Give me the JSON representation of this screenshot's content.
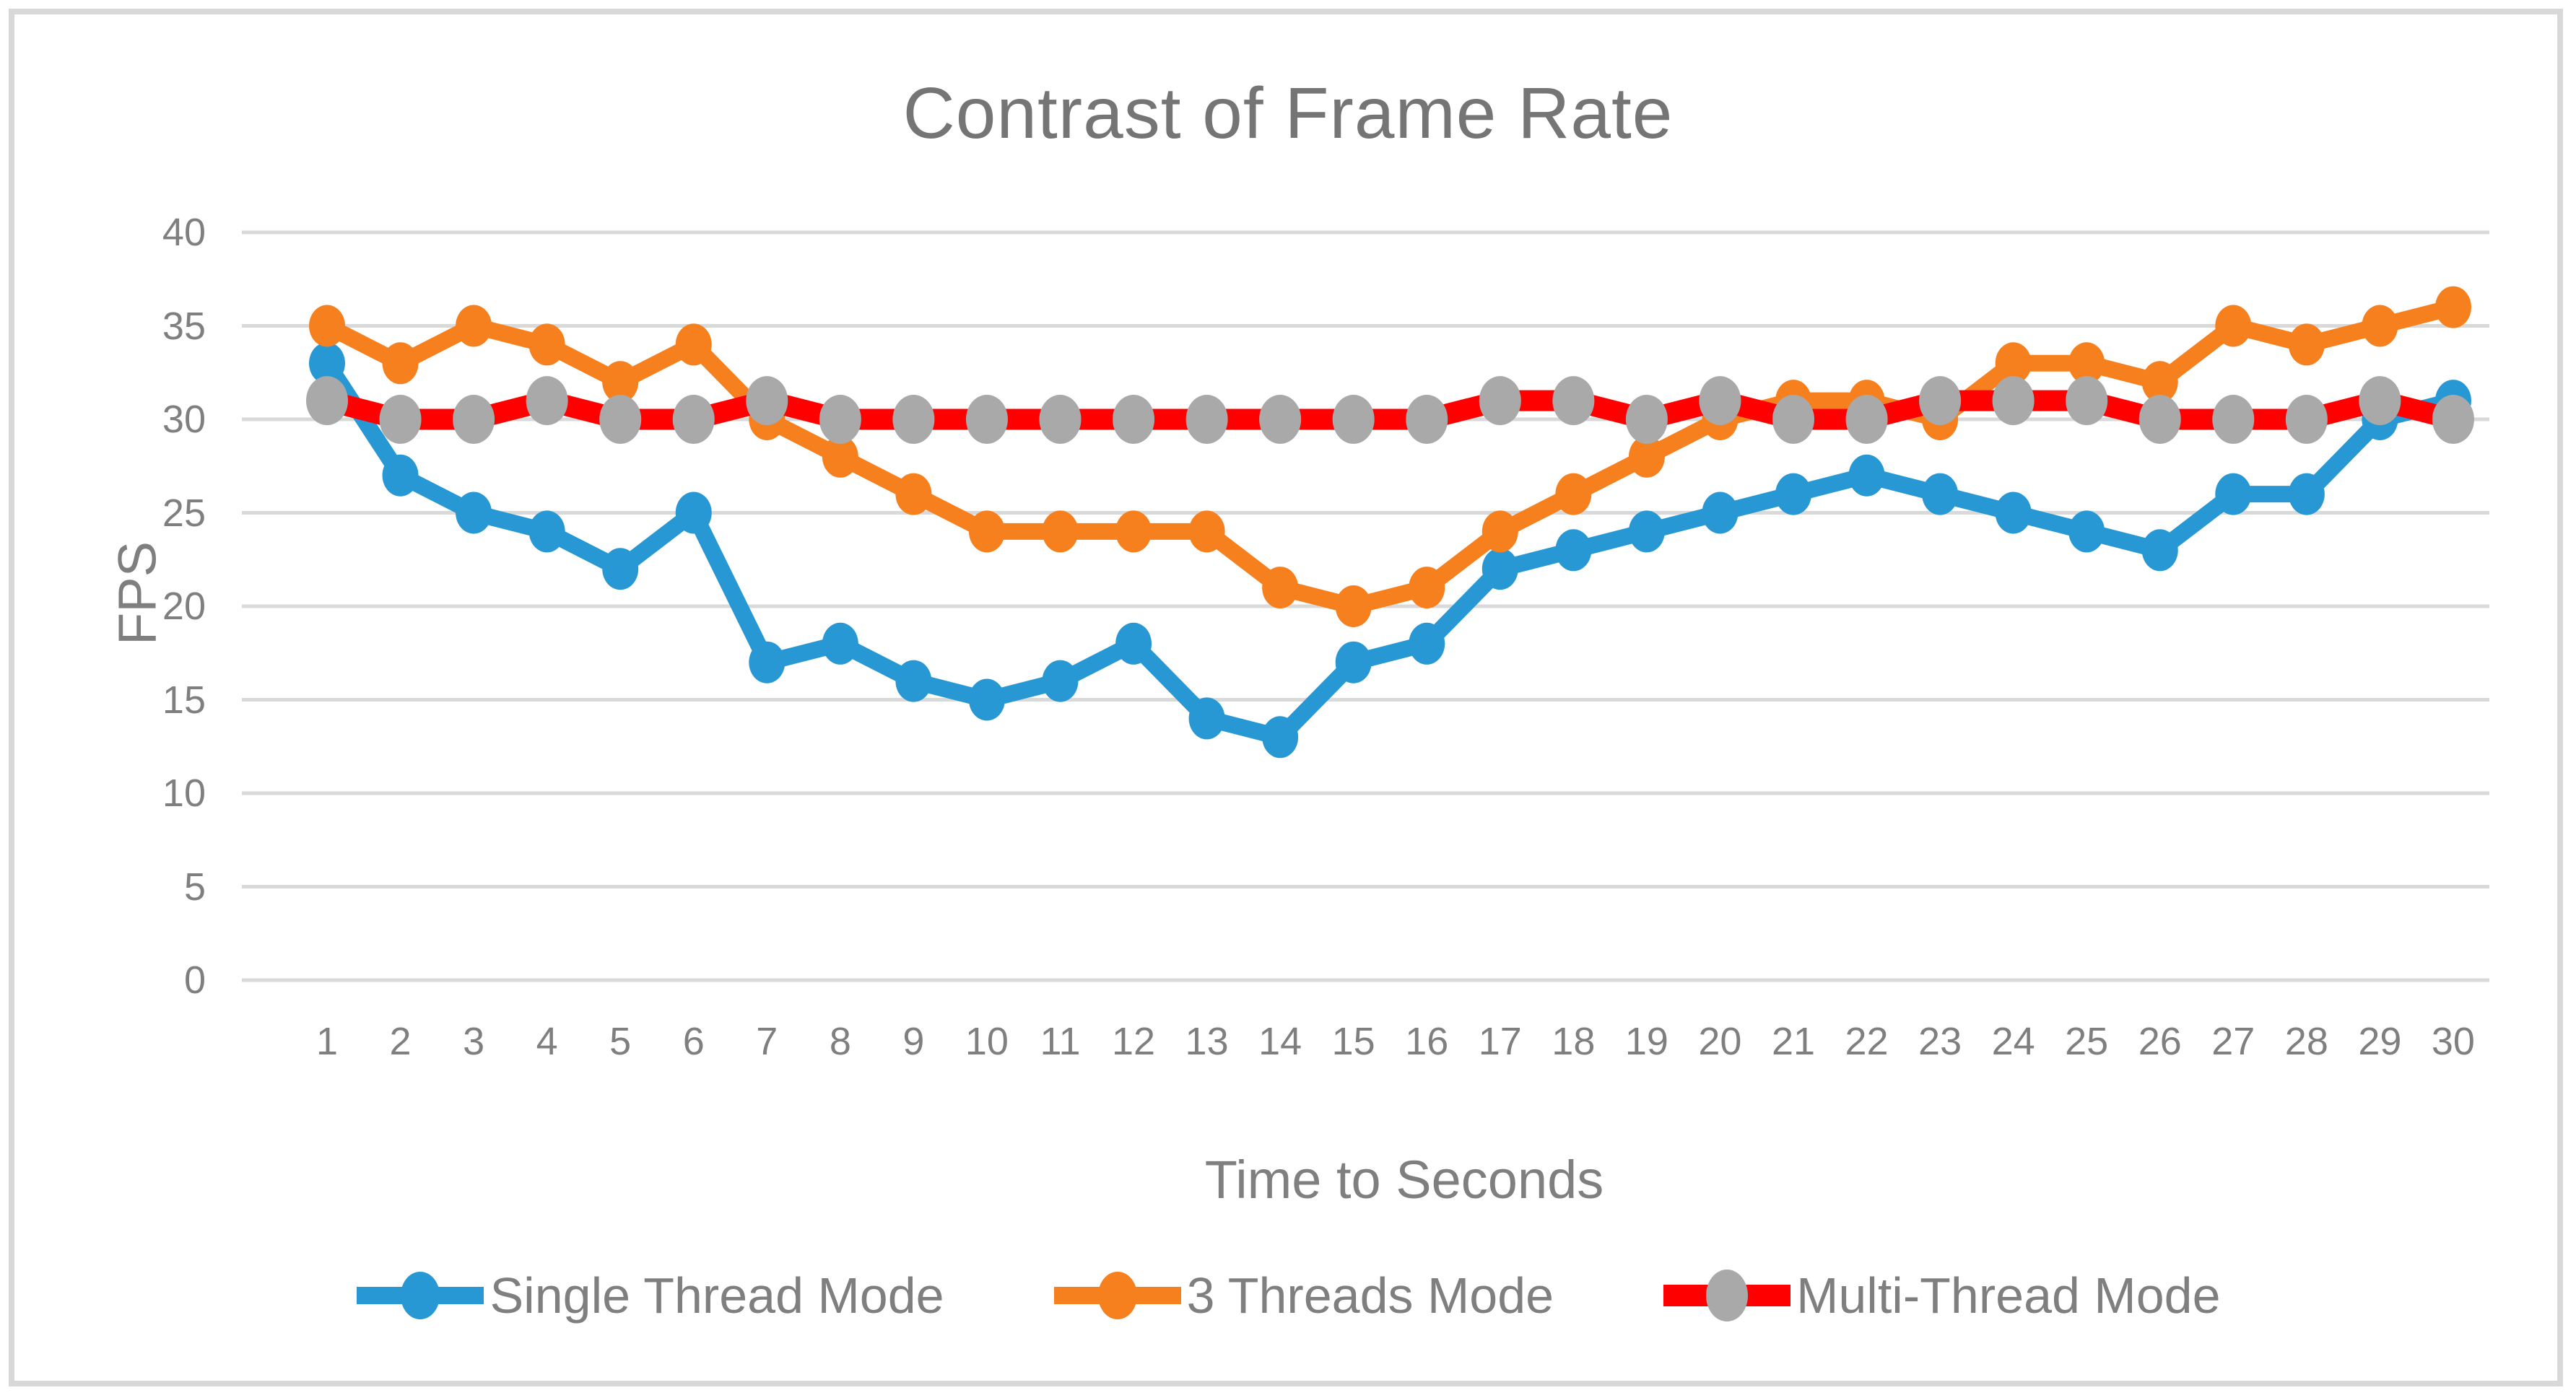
{
  "chart_data": {
    "type": "line",
    "title": "Contrast of Frame Rate",
    "xlabel": "Time to Seconds",
    "ylabel": "FPS",
    "x": [
      1,
      2,
      3,
      4,
      5,
      6,
      7,
      8,
      9,
      10,
      11,
      12,
      13,
      14,
      15,
      16,
      17,
      18,
      19,
      20,
      21,
      22,
      23,
      24,
      25,
      26,
      27,
      28,
      29,
      30
    ],
    "yticks": [
      0,
      5,
      10,
      15,
      20,
      25,
      30,
      35,
      40
    ],
    "ylim": [
      0,
      40
    ],
    "grid": true,
    "legend_position": "bottom",
    "grid_color": "#D9D9D9",
    "text_color": "#7F7F7F",
    "title_color": "#757575",
    "frame_border_color": "#D8D8D8",
    "series": [
      {
        "name": "Single Thread Mode",
        "line_color": "#2798D4",
        "marker_color": "#2798D4",
        "values": [
          33,
          27,
          25,
          24,
          22,
          25,
          17,
          18,
          16,
          15,
          16,
          18,
          14,
          13,
          17,
          18,
          22,
          23,
          24,
          25,
          26,
          27,
          26,
          25,
          24,
          23,
          26,
          26,
          30,
          31
        ]
      },
      {
        "name": "3 Threads Mode",
        "line_color": "#F6801E",
        "marker_color": "#F6801E",
        "values": [
          35,
          33,
          35,
          34,
          32,
          34,
          30,
          28,
          26,
          24,
          24,
          24,
          24,
          21,
          20,
          21,
          24,
          26,
          28,
          30,
          31,
          31,
          30,
          33,
          33,
          32,
          35,
          34,
          35,
          36
        ]
      },
      {
        "name": "Multi-Thread Mode",
        "line_color": "#FE0000",
        "marker_color": "#A9A9A9",
        "values": [
          31,
          30,
          30,
          31,
          30,
          30,
          31,
          30,
          30,
          30,
          30,
          30,
          30,
          30,
          30,
          30,
          31,
          31,
          30,
          31,
          30,
          30,
          31,
          31,
          31,
          30,
          30,
          30,
          31,
          30
        ]
      }
    ]
  }
}
